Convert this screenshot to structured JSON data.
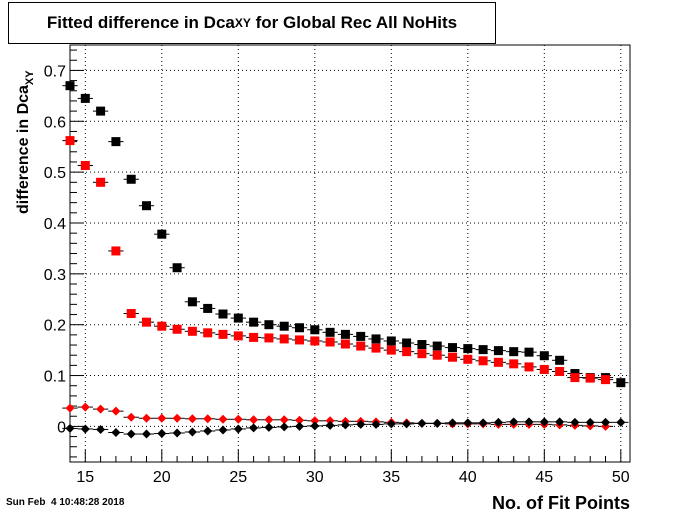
{
  "title": {
    "prefix": "Fitted difference in Dca",
    "sub": "XY",
    "suffix": " for Global Rec All NoHits"
  },
  "timestamp": "Sun Feb  4 10:48:28 2018",
  "chart_data": {
    "type": "scatter",
    "xlabel": "No. of Fit Points",
    "ylabel_prefix": "difference in Dca",
    "ylabel_sub": "XY",
    "xlim": [
      14,
      50.6
    ],
    "ylim": [
      -0.07,
      0.75
    ],
    "grid": true,
    "x_ticks": [
      15,
      20,
      25,
      30,
      35,
      40,
      45,
      50
    ],
    "y_ticks": [
      0,
      0.1,
      0.2,
      0.3,
      0.4,
      0.5,
      0.6,
      0.7
    ],
    "y_tick_labels": [
      "0",
      "0.1",
      "0.2",
      "0.3",
      "0.4",
      "0.5",
      "0.6",
      "0.7"
    ],
    "series": [
      {
        "marker": "square",
        "color": "#000000",
        "points": [
          [
            14,
            0.67
          ],
          [
            15,
            0.645
          ],
          [
            16,
            0.62
          ],
          [
            17,
            0.56
          ],
          [
            18,
            0.486
          ],
          [
            19,
            0.434
          ],
          [
            20,
            0.378
          ],
          [
            21,
            0.312
          ],
          [
            22,
            0.245
          ],
          [
            23,
            0.232
          ],
          [
            24,
            0.221
          ],
          [
            25,
            0.213
          ],
          [
            26,
            0.205
          ],
          [
            27,
            0.2
          ],
          [
            28,
            0.197
          ],
          [
            29,
            0.194
          ],
          [
            30,
            0.19
          ],
          [
            31,
            0.185
          ],
          [
            32,
            0.181
          ],
          [
            33,
            0.177
          ],
          [
            34,
            0.172
          ],
          [
            35,
            0.168
          ],
          [
            36,
            0.164
          ],
          [
            37,
            0.161
          ],
          [
            38,
            0.158
          ],
          [
            39,
            0.155
          ],
          [
            40,
            0.153
          ],
          [
            41,
            0.151
          ],
          [
            42,
            0.149
          ],
          [
            43,
            0.147
          ],
          [
            44,
            0.146
          ],
          [
            45,
            0.139
          ],
          [
            46,
            0.13
          ],
          [
            47,
            0.104
          ],
          [
            48,
            0.096
          ],
          [
            49,
            0.096
          ],
          [
            50,
            0.086
          ]
        ]
      },
      {
        "marker": "square",
        "color": "#ff0000",
        "points": [
          [
            14,
            0.562
          ],
          [
            15,
            0.513
          ],
          [
            16,
            0.48
          ],
          [
            17,
            0.345
          ],
          [
            18,
            0.222
          ],
          [
            19,
            0.205
          ],
          [
            20,
            0.197
          ],
          [
            21,
            0.191
          ],
          [
            22,
            0.187
          ],
          [
            23,
            0.184
          ],
          [
            24,
            0.181
          ],
          [
            25,
            0.178
          ],
          [
            26,
            0.175
          ],
          [
            27,
            0.174
          ],
          [
            28,
            0.172
          ],
          [
            29,
            0.17
          ],
          [
            30,
            0.168
          ],
          [
            31,
            0.166
          ],
          [
            32,
            0.162
          ],
          [
            33,
            0.158
          ],
          [
            34,
            0.154
          ],
          [
            35,
            0.15
          ],
          [
            36,
            0.147
          ],
          [
            37,
            0.143
          ],
          [
            38,
            0.14
          ],
          [
            39,
            0.136
          ],
          [
            40,
            0.132
          ],
          [
            41,
            0.129
          ],
          [
            42,
            0.126
          ],
          [
            43,
            0.123
          ],
          [
            44,
            0.117
          ],
          [
            45,
            0.112
          ],
          [
            46,
            0.108
          ],
          [
            47,
            0.096
          ],
          [
            48,
            0.095
          ],
          [
            49,
            0.092
          ]
        ]
      },
      {
        "marker": "diamond",
        "color": "#ff0000",
        "points": [
          [
            14,
            0.036
          ],
          [
            15,
            0.038
          ],
          [
            16,
            0.034
          ],
          [
            17,
            0.03
          ],
          [
            18,
            0.018
          ],
          [
            19,
            0.016
          ],
          [
            20,
            0.016
          ],
          [
            21,
            0.016
          ],
          [
            22,
            0.015
          ],
          [
            23,
            0.015
          ],
          [
            24,
            0.014
          ],
          [
            25,
            0.014
          ],
          [
            26,
            0.013
          ],
          [
            27,
            0.013
          ],
          [
            28,
            0.013
          ],
          [
            29,
            0.012
          ],
          [
            30,
            0.011
          ],
          [
            31,
            0.011
          ],
          [
            32,
            0.01
          ],
          [
            33,
            0.01
          ],
          [
            34,
            0.009
          ],
          [
            35,
            0.008
          ],
          [
            36,
            0.007
          ],
          [
            37,
            0.006
          ],
          [
            38,
            0.006
          ],
          [
            39,
            0.005
          ],
          [
            40,
            0.005
          ],
          [
            41,
            0.005
          ],
          [
            42,
            0.004
          ],
          [
            43,
            0.004
          ],
          [
            44,
            0.004
          ],
          [
            45,
            0.004
          ],
          [
            46,
            0.003
          ],
          [
            47,
            0.002
          ],
          [
            48,
            0.001
          ],
          [
            49,
            0.0
          ]
        ]
      },
      {
        "marker": "diamond",
        "color": "#000000",
        "points": [
          [
            14,
            -0.004
          ],
          [
            15,
            -0.005
          ],
          [
            16,
            -0.006
          ],
          [
            17,
            -0.012
          ],
          [
            18,
            -0.015
          ],
          [
            19,
            -0.015
          ],
          [
            20,
            -0.014
          ],
          [
            21,
            -0.013
          ],
          [
            22,
            -0.011
          ],
          [
            23,
            -0.009
          ],
          [
            24,
            -0.007
          ],
          [
            25,
            -0.005
          ],
          [
            26,
            -0.003
          ],
          [
            27,
            -0.002
          ],
          [
            28,
            -0.001
          ],
          [
            29,
            0.0
          ],
          [
            30,
            0.001
          ],
          [
            31,
            0.002
          ],
          [
            32,
            0.003
          ],
          [
            33,
            0.004
          ],
          [
            34,
            0.004
          ],
          [
            35,
            0.005
          ],
          [
            36,
            0.005
          ],
          [
            37,
            0.006
          ],
          [
            38,
            0.006
          ],
          [
            39,
            0.007
          ],
          [
            40,
            0.007
          ],
          [
            41,
            0.007
          ],
          [
            42,
            0.008
          ],
          [
            43,
            0.009
          ],
          [
            44,
            0.009
          ],
          [
            45,
            0.009
          ],
          [
            46,
            0.009
          ],
          [
            47,
            0.008
          ],
          [
            48,
            0.008
          ],
          [
            49,
            0.008
          ],
          [
            50,
            0.008
          ]
        ]
      }
    ]
  }
}
